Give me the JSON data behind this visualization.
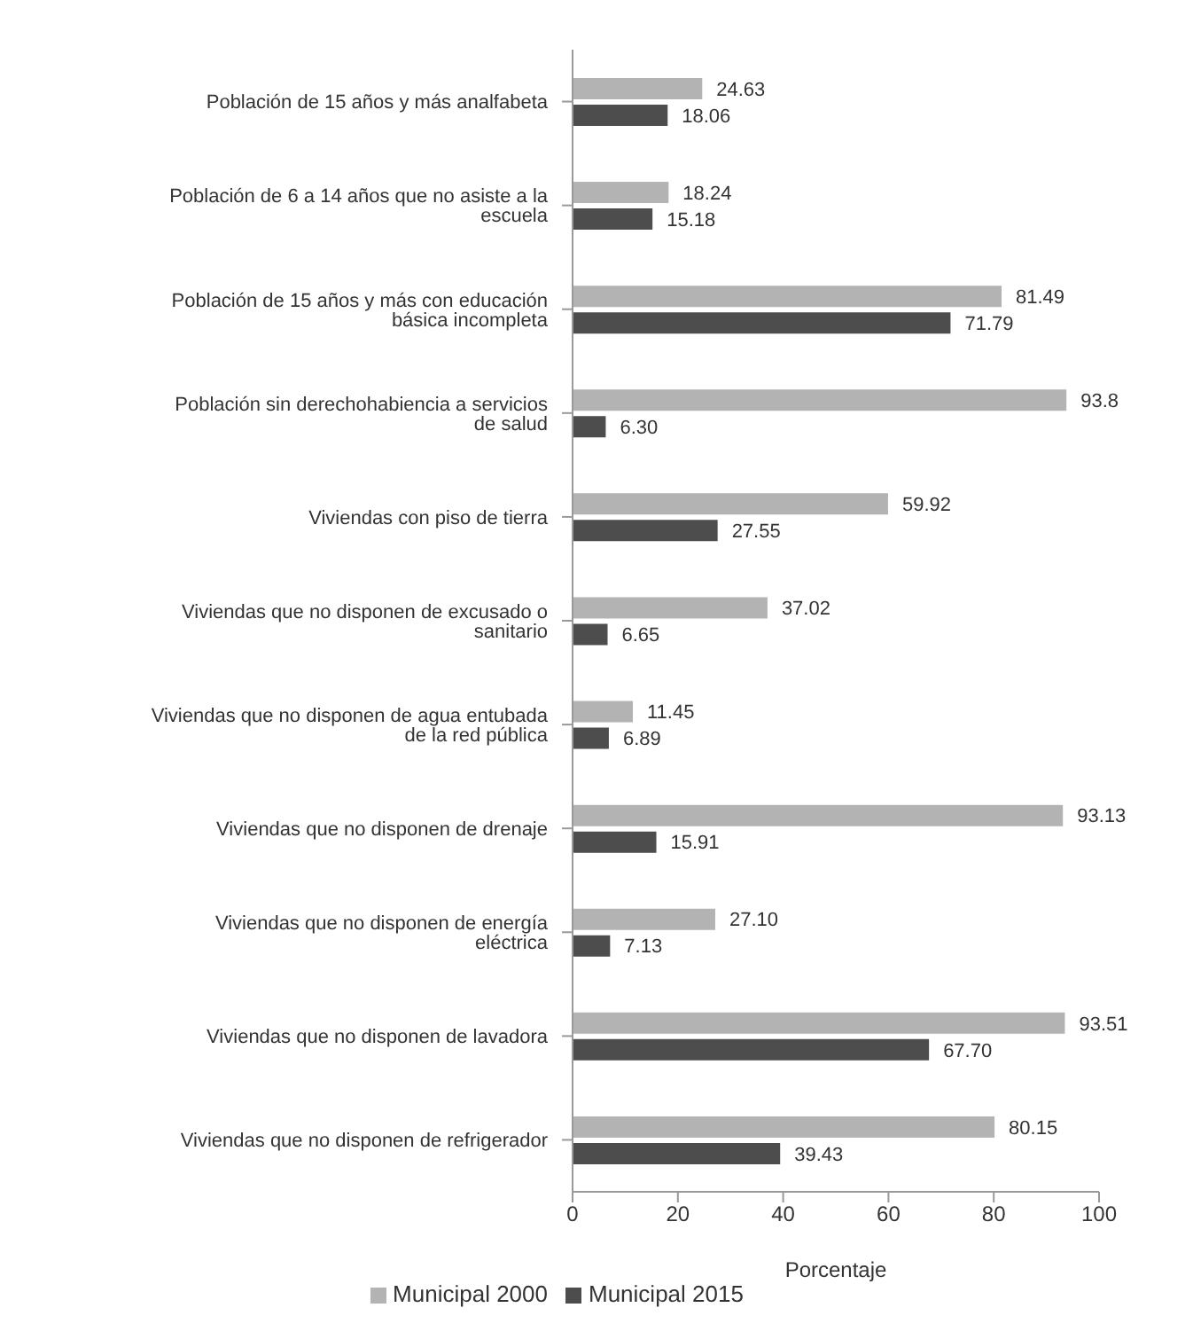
{
  "chart_data": {
    "type": "bar",
    "orientation": "horizontal",
    "xlabel": "Porcentaje",
    "categories": [
      "Población de 15 años y más analfabeta",
      "Población de 6 a 14 años que no asiste a la escuela",
      "Población de 15 años y más con educación básica incompleta",
      "Población sin derechohabiencia a servicios de salud",
      "Viviendas con piso de tierra",
      "Viviendas que no disponen de excusado o sanitario",
      "Viviendas que no disponen de agua entubada de la red pública",
      "Viviendas que no disponen de drenaje",
      "Viviendas que no disponen de energía eléctrica",
      "Viviendas que no disponen de lavadora",
      "Viviendas que no disponen de refrigerador"
    ],
    "series": [
      {
        "name": "Municipal 2000",
        "color": "#b3b3b3",
        "values": [
          24.63,
          18.24,
          81.49,
          93.8,
          59.92,
          37.02,
          11.45,
          93.13,
          27.1,
          93.51,
          80.15
        ],
        "value_labels": [
          "24.63",
          "18.24",
          "81.49",
          "93.8",
          "59.92",
          "37.02",
          "11.45",
          "93.13",
          "27.10",
          "93.51",
          "80.15"
        ]
      },
      {
        "name": "Municipal 2015",
        "color": "#4d4d4d",
        "values": [
          18.06,
          15.18,
          71.79,
          6.3,
          27.55,
          6.65,
          6.89,
          15.91,
          7.13,
          67.7,
          39.43
        ],
        "value_labels": [
          "18.06",
          "15.18",
          "71.79",
          "6.30",
          "27.55",
          "6.65",
          "6.89",
          "15.91",
          "7.13",
          "67.70",
          "39.43"
        ]
      }
    ],
    "xlim": [
      0,
      100
    ],
    "xticks": [
      0,
      20,
      40,
      60,
      80,
      100
    ],
    "legend": "bottom"
  }
}
